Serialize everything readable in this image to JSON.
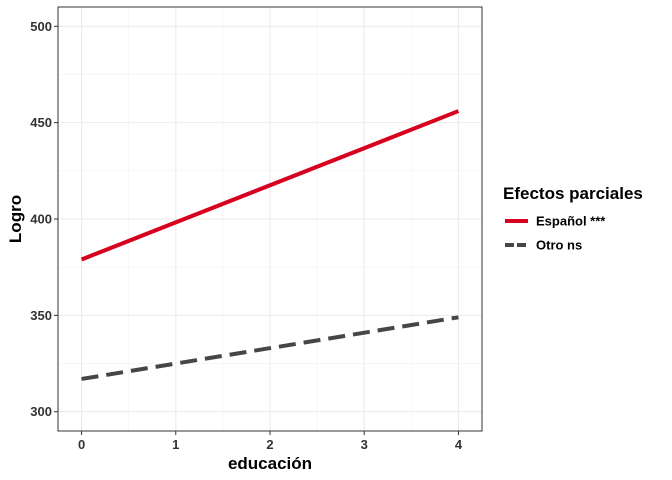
{
  "chart_data": {
    "type": "line",
    "xlabel": "educación",
    "ylabel": "Logro",
    "xlim": [
      -0.25,
      4.25
    ],
    "ylim": [
      290,
      510
    ],
    "x_ticks": [
      0,
      1,
      2,
      3,
      4
    ],
    "y_ticks": [
      300,
      350,
      400,
      450,
      500
    ],
    "x_tick_labels": [
      "0",
      "1",
      "2",
      "3",
      "4"
    ],
    "y_tick_labels": [
      "300",
      "350",
      "400",
      "450",
      "500"
    ],
    "grid": true,
    "legend": {
      "title": "Efectos parciales",
      "position": "right"
    },
    "series": [
      {
        "name": "Español ***",
        "x": [
          0,
          4
        ],
        "y": [
          379,
          456
        ],
        "color": "#d7001f",
        "style": "solid"
      },
      {
        "name": "Otro ns",
        "x": [
          0,
          4
        ],
        "y": [
          317,
          349
        ],
        "color": "#464646",
        "style": "dashed"
      }
    ]
  }
}
